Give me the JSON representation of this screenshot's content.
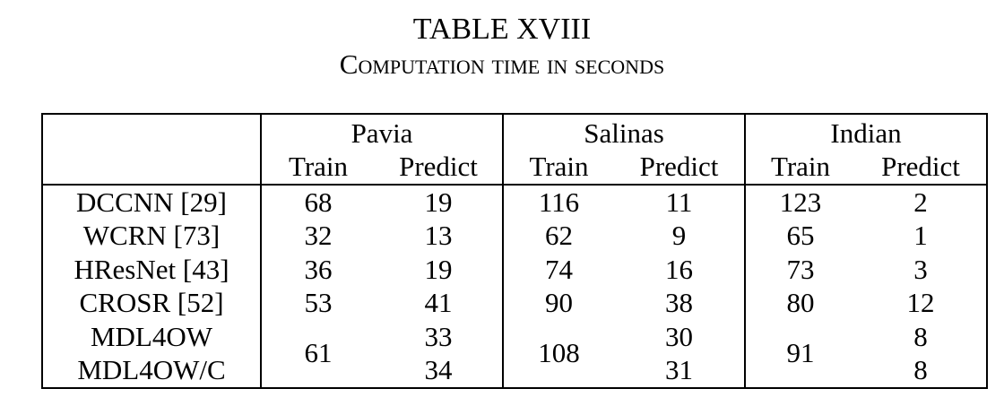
{
  "caption": {
    "label": "TABLE XVIII",
    "title": "Computation time in seconds"
  },
  "table": {
    "groups": [
      "Pavia",
      "Salinas",
      "Indian"
    ],
    "subheaders": [
      "Train",
      "Predict",
      "Train",
      "Predict",
      "Train",
      "Predict"
    ],
    "rows": [
      {
        "method": "DCCNN [29]",
        "values": [
          "68",
          "19",
          "116",
          "11",
          "123",
          "2"
        ]
      },
      {
        "method": "WCRN [73]",
        "values": [
          "32",
          "13",
          "62",
          "9",
          "65",
          "1"
        ]
      },
      {
        "method": "HResNet [43]",
        "values": [
          "36",
          "19",
          "74",
          "16",
          "73",
          "3"
        ]
      },
      {
        "method": "CROSR [52]",
        "values": [
          "53",
          "41",
          "90",
          "38",
          "80",
          "12"
        ]
      }
    ],
    "merged": {
      "methods": [
        "MDL4OW",
        "MDL4OW/C"
      ],
      "pavia_train": "61",
      "pavia_predict": [
        "33",
        "34"
      ],
      "salinas_train": "108",
      "salinas_predict": [
        "30",
        "31"
      ],
      "indian_train": "91",
      "indian_predict": [
        "8",
        "8"
      ]
    }
  }
}
